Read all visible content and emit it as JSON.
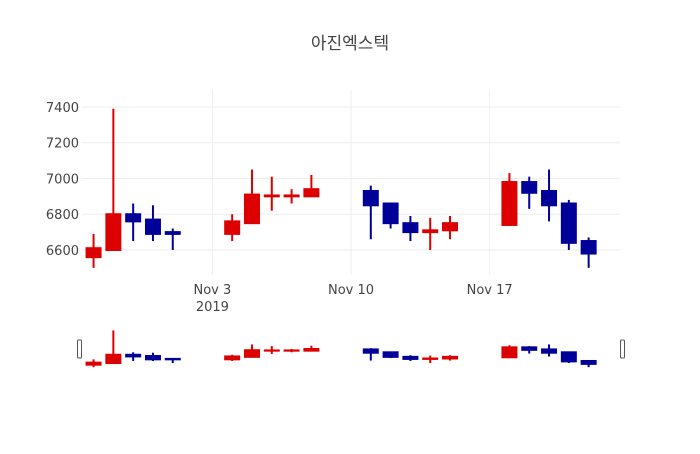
{
  "chart_data": {
    "type": "candlestick",
    "title": "아진엑스텍",
    "xlabel": "",
    "ylabel": "",
    "ylim": [
      6460,
      7439
    ],
    "xlim": [
      "2019-10-27T10:00",
      "2019-11-23T14:00"
    ],
    "yticks": [
      6600,
      6800,
      7000,
      7200,
      7400
    ],
    "yticklabels": [
      "6600",
      "6800",
      "7000",
      "7200",
      "7400"
    ],
    "xticks": [
      {
        "date": "2019-11-03",
        "label": "Nov 3",
        "sublabel": "2019"
      },
      {
        "date": "2019-11-10",
        "label": "Nov 10",
        "sublabel": ""
      },
      {
        "date": "2019-11-17",
        "label": "Nov 17",
        "sublabel": ""
      }
    ],
    "grid": true,
    "rangeslider": true,
    "increasing_color": "#dd0000",
    "decreasing_color": "#000099",
    "series": [
      {
        "date": "2019-10-28",
        "open": 6560,
        "high": 6690,
        "low": 6500,
        "close": 6610
      },
      {
        "date": "2019-10-29",
        "open": 6600,
        "high": 7390,
        "low": 6600,
        "close": 6800
      },
      {
        "date": "2019-10-30",
        "open": 6800,
        "high": 6860,
        "low": 6650,
        "close": 6760
      },
      {
        "date": "2019-10-31",
        "open": 6770,
        "high": 6850,
        "low": 6650,
        "close": 6690
      },
      {
        "date": "2019-11-01",
        "open": 6700,
        "high": 6720,
        "low": 6600,
        "close": 6690
      },
      {
        "date": "2019-11-04",
        "open": 6690,
        "high": 6800,
        "low": 6650,
        "close": 6760
      },
      {
        "date": "2019-11-05",
        "open": 6750,
        "high": 7050,
        "low": 6750,
        "close": 6910
      },
      {
        "date": "2019-11-06",
        "open": 6900,
        "high": 7010,
        "low": 6820,
        "close": 6905
      },
      {
        "date": "2019-11-07",
        "open": 6900,
        "high": 6940,
        "low": 6860,
        "close": 6905
      },
      {
        "date": "2019-11-08",
        "open": 6900,
        "high": 7020,
        "low": 6900,
        "close": 6940
      },
      {
        "date": "2019-11-11",
        "open": 6930,
        "high": 6960,
        "low": 6660,
        "close": 6850
      },
      {
        "date": "2019-11-12",
        "open": 6860,
        "high": 6860,
        "low": 6720,
        "close": 6750
      },
      {
        "date": "2019-11-13",
        "open": 6750,
        "high": 6790,
        "low": 6650,
        "close": 6700
      },
      {
        "date": "2019-11-14",
        "open": 6700,
        "high": 6780,
        "low": 6600,
        "close": 6710
      },
      {
        "date": "2019-11-15",
        "open": 6710,
        "high": 6790,
        "low": 6660,
        "close": 6750
      },
      {
        "date": "2019-11-18",
        "open": 6740,
        "high": 7030,
        "low": 6740,
        "close": 6980
      },
      {
        "date": "2019-11-19",
        "open": 6980,
        "high": 7010,
        "low": 6830,
        "close": 6920
      },
      {
        "date": "2019-11-20",
        "open": 6930,
        "high": 7050,
        "low": 6760,
        "close": 6850
      },
      {
        "date": "2019-11-21",
        "open": 6860,
        "high": 6880,
        "low": 6600,
        "close": 6640
      },
      {
        "date": "2019-11-22",
        "open": 6650,
        "high": 6670,
        "low": 6500,
        "close": 6580
      }
    ]
  }
}
